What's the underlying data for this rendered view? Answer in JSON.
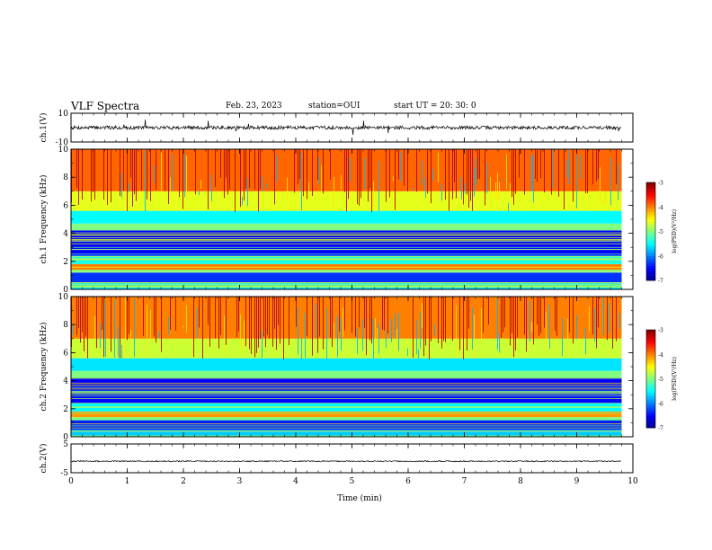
{
  "header": {
    "title": "VLF Spectra",
    "date": "Feb. 23, 2023",
    "station": "station=OUI",
    "start_ut": "start  UT =   20: 30: 0"
  },
  "colorbar": {
    "label": "log(PSD)(V²/Hz)",
    "ticks": [
      "-3",
      "-4",
      "-5",
      "-6",
      "-7"
    ]
  },
  "chart_data": [
    {
      "type": "line",
      "name": "waveform-ch1",
      "ylabel": "ch.1(V)",
      "yticks": [
        "10",
        "-10"
      ],
      "ylim": [
        -10,
        10
      ],
      "xlim": [
        0,
        10
      ],
      "x_extent": [
        0,
        9.8
      ],
      "mean": 0.0,
      "noise_amplitude": 1.2
    },
    {
      "type": "heatmap",
      "name": "spectrogram-ch1",
      "ylabel": "ch.1 Frequency (kHz)",
      "yticks": [
        "0",
        "2",
        "4",
        "6",
        "8",
        "10"
      ],
      "ylim": [
        0,
        10
      ],
      "xlim": [
        0,
        10
      ],
      "x_extent": [
        0,
        9.8
      ],
      "zlim": [
        -7,
        -3
      ],
      "colormap": [
        "#00008f",
        "#0000ff",
        "#0080ff",
        "#00ffff",
        "#80ff80",
        "#ffff00",
        "#ff8000",
        "#ff0000",
        "#800000"
      ],
      "bands": [
        {
          "f_min": 0.0,
          "f_max": 0.5,
          "level": -5.6
        },
        {
          "f_min": 0.5,
          "f_max": 1.2,
          "level": -6.3
        },
        {
          "f_min": 1.2,
          "f_max": 1.4,
          "level": -5.0
        },
        {
          "f_min": 1.4,
          "f_max": 1.8,
          "level": -4.0
        },
        {
          "f_min": 1.8,
          "f_max": 2.4,
          "level": -5.4
        },
        {
          "f_min": 2.4,
          "f_max": 4.2,
          "level": -6.5
        },
        {
          "f_min": 4.2,
          "f_max": 4.7,
          "level": -5.0
        },
        {
          "f_min": 4.7,
          "f_max": 5.6,
          "level": -5.5
        },
        {
          "f_min": 5.6,
          "f_max": 7.0,
          "level": -4.6
        },
        {
          "f_min": 7.0,
          "f_max": 10.0,
          "level": -3.9
        }
      ]
    },
    {
      "type": "heatmap",
      "name": "spectrogram-ch2",
      "ylabel": "ch.2 Frequency (kHz)",
      "yticks": [
        "0",
        "2",
        "4",
        "6",
        "8",
        "10"
      ],
      "ylim": [
        0,
        10
      ],
      "xlim": [
        0,
        10
      ],
      "x_extent": [
        0,
        9.8
      ],
      "zlim": [
        -7,
        -3
      ],
      "colormap": [
        "#00008f",
        "#0000ff",
        "#0080ff",
        "#00ffff",
        "#80ff80",
        "#ffff00",
        "#ff8000",
        "#ff0000",
        "#800000"
      ],
      "bands": [
        {
          "f_min": 0.0,
          "f_max": 0.5,
          "level": -5.7
        },
        {
          "f_min": 0.5,
          "f_max": 1.2,
          "level": -6.4
        },
        {
          "f_min": 1.2,
          "f_max": 1.4,
          "level": -5.0
        },
        {
          "f_min": 1.4,
          "f_max": 1.8,
          "level": -4.1
        },
        {
          "f_min": 1.8,
          "f_max": 2.4,
          "level": -5.5
        },
        {
          "f_min": 2.4,
          "f_max": 4.2,
          "level": -6.5
        },
        {
          "f_min": 4.2,
          "f_max": 4.7,
          "level": -5.0
        },
        {
          "f_min": 4.7,
          "f_max": 5.6,
          "level": -5.6
        },
        {
          "f_min": 5.6,
          "f_max": 7.0,
          "level": -4.7
        },
        {
          "f_min": 7.0,
          "f_max": 10.0,
          "level": -4.0
        }
      ]
    },
    {
      "type": "line",
      "name": "waveform-ch2",
      "ylabel": "ch.2(V)",
      "yticks": [
        "5",
        "-5"
      ],
      "ylim": [
        -5,
        5
      ],
      "xlim": [
        0,
        10
      ],
      "x_extent": [
        0,
        9.8
      ],
      "mean": -1.0,
      "noise_amplitude": 0.2
    }
  ],
  "xaxis": {
    "label": "Time (min)",
    "ticks": [
      "0",
      "1",
      "2",
      "3",
      "4",
      "5",
      "6",
      "7",
      "8",
      "9",
      "10"
    ]
  }
}
